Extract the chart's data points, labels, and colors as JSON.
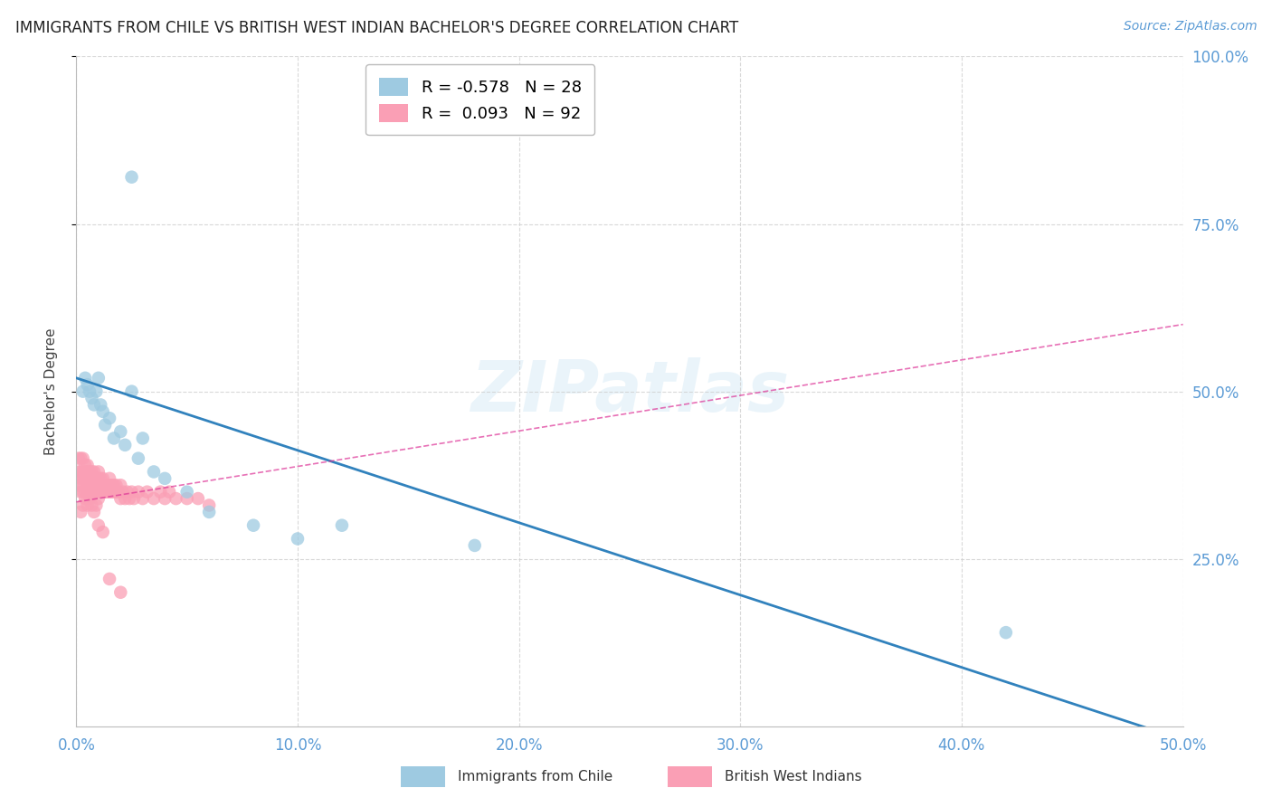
{
  "title": "IMMIGRANTS FROM CHILE VS BRITISH WEST INDIAN BACHELOR'S DEGREE CORRELATION CHART",
  "source": "Source: ZipAtlas.com",
  "ylabel": "Bachelor's Degree",
  "xlim": [
    0.0,
    0.5
  ],
  "ylim": [
    0.0,
    1.0
  ],
  "xtick_vals": [
    0.0,
    0.1,
    0.2,
    0.3,
    0.4,
    0.5
  ],
  "ytick_vals": [
    0.25,
    0.5,
    0.75,
    1.0
  ],
  "ytick_labels": [
    "25.0%",
    "50.0%",
    "75.0%",
    "100.0%"
  ],
  "series1_label": "Immigrants from Chile",
  "series1_R": "-0.578",
  "series1_N": "28",
  "series1_color": "#9ecae1",
  "series1_line_color": "#3182bd",
  "series2_label": "British West Indians",
  "series2_R": "0.093",
  "series2_N": "92",
  "series2_color": "#fa9fb5",
  "series2_line_color": "#dd3497",
  "background_color": "#ffffff",
  "grid_color": "#d0d0d0",
  "axis_color": "#5b9bd5",
  "watermark": "ZIPatlas",
  "series1_x": [
    0.003,
    0.004,
    0.005,
    0.006,
    0.007,
    0.008,
    0.009,
    0.01,
    0.011,
    0.012,
    0.013,
    0.015,
    0.017,
    0.02,
    0.022,
    0.025,
    0.028,
    0.03,
    0.035,
    0.04,
    0.05,
    0.06,
    0.08,
    0.1,
    0.12,
    0.18,
    0.42,
    0.025
  ],
  "series1_y": [
    0.5,
    0.52,
    0.51,
    0.5,
    0.49,
    0.48,
    0.5,
    0.52,
    0.48,
    0.47,
    0.45,
    0.46,
    0.43,
    0.44,
    0.42,
    0.5,
    0.4,
    0.43,
    0.38,
    0.37,
    0.35,
    0.32,
    0.3,
    0.28,
    0.3,
    0.27,
    0.14,
    0.82
  ],
  "series2_x": [
    0.001,
    0.001,
    0.001,
    0.002,
    0.002,
    0.002,
    0.002,
    0.003,
    0.003,
    0.003,
    0.003,
    0.003,
    0.004,
    0.004,
    0.004,
    0.004,
    0.005,
    0.005,
    0.005,
    0.005,
    0.005,
    0.006,
    0.006,
    0.006,
    0.006,
    0.007,
    0.007,
    0.007,
    0.007,
    0.008,
    0.008,
    0.008,
    0.008,
    0.009,
    0.009,
    0.009,
    0.01,
    0.01,
    0.01,
    0.01,
    0.01,
    0.011,
    0.011,
    0.011,
    0.012,
    0.012,
    0.012,
    0.013,
    0.013,
    0.014,
    0.014,
    0.015,
    0.015,
    0.015,
    0.016,
    0.016,
    0.017,
    0.017,
    0.018,
    0.018,
    0.019,
    0.02,
    0.02,
    0.021,
    0.022,
    0.023,
    0.024,
    0.025,
    0.026,
    0.028,
    0.03,
    0.032,
    0.035,
    0.038,
    0.04,
    0.042,
    0.045,
    0.05,
    0.055,
    0.06,
    0.002,
    0.003,
    0.004,
    0.005,
    0.006,
    0.007,
    0.008,
    0.009,
    0.01,
    0.012,
    0.015,
    0.02
  ],
  "series2_y": [
    0.36,
    0.38,
    0.4,
    0.35,
    0.37,
    0.38,
    0.4,
    0.35,
    0.37,
    0.38,
    0.4,
    0.36,
    0.35,
    0.37,
    0.38,
    0.39,
    0.35,
    0.36,
    0.37,
    0.38,
    0.39,
    0.35,
    0.36,
    0.37,
    0.38,
    0.35,
    0.36,
    0.37,
    0.38,
    0.35,
    0.36,
    0.37,
    0.38,
    0.35,
    0.36,
    0.37,
    0.35,
    0.36,
    0.37,
    0.38,
    0.34,
    0.35,
    0.36,
    0.37,
    0.35,
    0.36,
    0.37,
    0.35,
    0.36,
    0.35,
    0.36,
    0.35,
    0.36,
    0.37,
    0.35,
    0.36,
    0.35,
    0.36,
    0.35,
    0.36,
    0.35,
    0.34,
    0.36,
    0.35,
    0.34,
    0.35,
    0.34,
    0.35,
    0.34,
    0.35,
    0.34,
    0.35,
    0.34,
    0.35,
    0.34,
    0.35,
    0.34,
    0.34,
    0.34,
    0.33,
    0.32,
    0.33,
    0.34,
    0.33,
    0.34,
    0.33,
    0.32,
    0.33,
    0.3,
    0.29,
    0.22,
    0.2
  ],
  "blue_line_x": [
    0.0,
    0.5
  ],
  "blue_line_y": [
    0.52,
    -0.02
  ],
  "pink_line_x": [
    0.0,
    0.5
  ],
  "pink_line_y": [
    0.335,
    0.6
  ]
}
